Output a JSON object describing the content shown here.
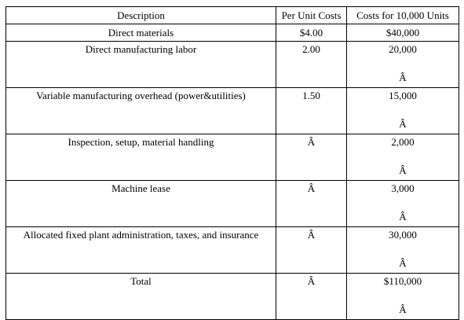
{
  "table": {
    "headers": [
      "Description",
      "Per Unit Costs",
      "Costs for 10,000 Units"
    ],
    "rows": [
      {
        "description": "Direct materials",
        "per_unit": "$4.00",
        "total": "$40,000",
        "trailing": ""
      },
      {
        "description": "Direct manufacturing labor",
        "per_unit": "2.00",
        "total": "20,000",
        "trailing": "Â"
      },
      {
        "description": "Variable manufacturing overhead (power&utilities)",
        "per_unit": "1.50",
        "total": "15,000",
        "trailing": "Â"
      },
      {
        "description": "Inspection, setup, material handling",
        "per_unit": "Â",
        "total": "2,000",
        "trailing": "Â"
      },
      {
        "description": "Machine lease",
        "per_unit": "Â",
        "total": "3,000",
        "trailing": "Â"
      },
      {
        "description": "Allocated fixed plant administration, taxes, and insurance",
        "per_unit": "Â",
        "total": "30,000",
        "trailing": "Â"
      },
      {
        "description": "Total",
        "per_unit": "Â",
        "total": "$110,000",
        "trailing": "Â"
      }
    ]
  }
}
